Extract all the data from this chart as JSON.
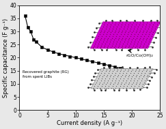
{
  "x": [
    1,
    1.5,
    2,
    2.5,
    3,
    4,
    5,
    6,
    7,
    8,
    9,
    10,
    11,
    12,
    13,
    14,
    15,
    16,
    17,
    18,
    19,
    20,
    21,
    22,
    23
  ],
  "y": [
    36,
    31.5,
    30,
    27,
    26,
    24,
    23,
    22.2,
    21.5,
    21,
    20.5,
    20,
    19.5,
    19,
    18.5,
    18,
    17.5,
    17,
    16.5,
    16,
    15.5,
    15.2,
    15,
    14.8,
    14.5
  ],
  "marker": "s",
  "marker_size": 3.0,
  "line_color": "black",
  "marker_color": "black",
  "marker_facecolor": "black",
  "xlabel": "Current density (A g⁻¹)",
  "ylabel": "Specific capacitance (F g⁻¹)",
  "xlim": [
    0,
    25
  ],
  "ylim": [
    0,
    40
  ],
  "xticks": [
    0,
    5,
    10,
    15,
    20,
    25
  ],
  "yticks": [
    0,
    5,
    10,
    15,
    20,
    25,
    30,
    35,
    40
  ],
  "label_rgo": "rGO/Co(OH)₂",
  "label_rg": "Recovered graphite (RG)\nfrom spent LIBs",
  "bg_color": "#e8e8e8",
  "plot_bg_color": "#ffffff",
  "axis_fontsize": 6,
  "tick_fontsize": 5.5,
  "magenta_color": "#CC00CC",
  "magenta_dot_color": "#880066",
  "gray_color": "#b0b0b0",
  "gray_dot_color": "#555555"
}
